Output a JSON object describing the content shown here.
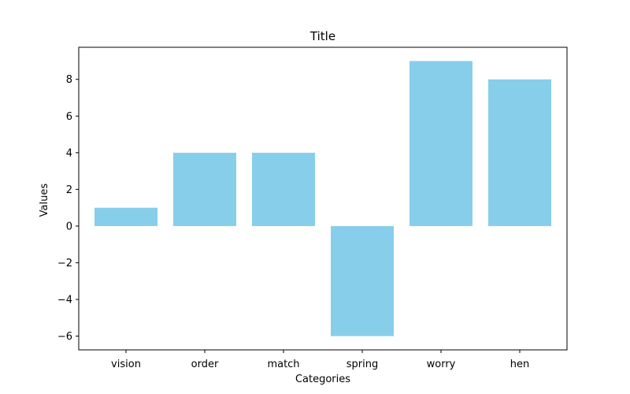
{
  "chart_data": {
    "type": "bar",
    "title": "Title",
    "xlabel": "Categories",
    "ylabel": "Values",
    "categories": [
      "vision",
      "order",
      "match",
      "spring",
      "worry",
      "hen"
    ],
    "values": [
      1,
      4,
      4,
      -6,
      9,
      8
    ],
    "ylim": [
      -6.75,
      9.75
    ],
    "yticks": [
      -6,
      -4,
      -2,
      0,
      2,
      4,
      6,
      8
    ],
    "ytick_labels": [
      "−6",
      "−4",
      "−2",
      "0",
      "2",
      "4",
      "6",
      "8"
    ],
    "bar_color": "#87ceeb",
    "grid": false,
    "legend": "none"
  }
}
